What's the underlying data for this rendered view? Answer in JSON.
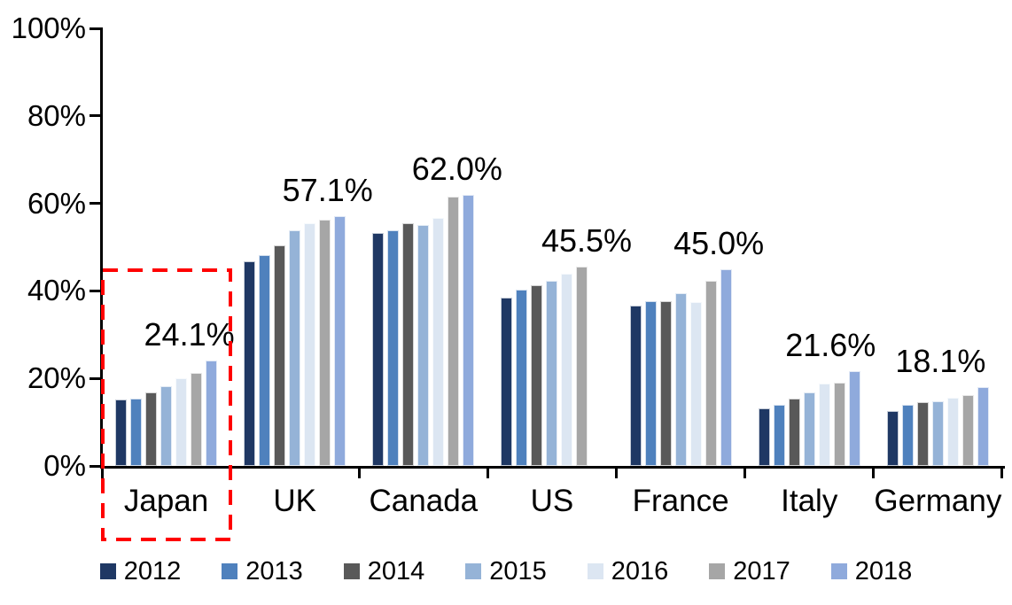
{
  "chart_data": {
    "type": "bar",
    "title": "",
    "categories": [
      "Japan",
      "UK",
      "Canada",
      "US",
      "France",
      "Italy",
      "Germany"
    ],
    "series": [
      {
        "name": "2012",
        "color": "#1F3864",
        "values": [
          15.1,
          46.7,
          53.3,
          38.5,
          36.6,
          13.2,
          12.6
        ]
      },
      {
        "name": "2013",
        "color": "#4F81BD",
        "values": [
          15.3,
          48.2,
          53.9,
          40.3,
          37.7,
          14.0,
          14.0
        ]
      },
      {
        "name": "2014",
        "color": "#595959",
        "values": [
          16.9,
          50.5,
          55.4,
          41.3,
          37.6,
          15.3,
          14.5
        ]
      },
      {
        "name": "2015",
        "color": "#95B3D7",
        "values": [
          18.2,
          53.8,
          55.0,
          42.3,
          39.5,
          16.8,
          14.8
        ]
      },
      {
        "name": "2016",
        "color": "#DCE6F2",
        "values": [
          20.0,
          55.5,
          56.6,
          44.0,
          37.4,
          18.8,
          15.5
        ]
      },
      {
        "name": "2017",
        "color": "#A6A6A6",
        "values": [
          21.3,
          56.3,
          61.6,
          45.5,
          42.4,
          19.1,
          16.1
        ]
      },
      {
        "name": "2018",
        "color": "#8FAADC",
        "values": [
          24.1,
          57.1,
          62.0,
          null,
          45.0,
          21.6,
          18.1
        ]
      }
    ],
    "data_labels": [
      {
        "category": "Japan",
        "series": "2018",
        "text": "24.1%",
        "dx": -25
      },
      {
        "category": "UK",
        "series": "2018",
        "text": "57.1%",
        "dx": -14
      },
      {
        "category": "Canada",
        "series": "2018",
        "text": "62.0%",
        "dx": -13
      },
      {
        "category": "US",
        "series": "2017",
        "text": "45.5%",
        "dx": 5
      },
      {
        "category": "France",
        "series": "2018",
        "text": "45.0%",
        "dx": -8
      },
      {
        "category": "Italy",
        "series": "2018",
        "text": "21.6%",
        "dx": -27
      },
      {
        "category": "Germany",
        "series": "2018",
        "text": "18.1%",
        "dx": -48
      }
    ],
    "y_axis": {
      "min": 0,
      "max": 100,
      "ticks": [
        "0%",
        "20%",
        "40%",
        "60%",
        "80%",
        "100%"
      ]
    },
    "legend": [
      "2012",
      "2013",
      "2014",
      "2015",
      "2016",
      "2017",
      "2018"
    ],
    "legend_position": "bottom",
    "grid": false,
    "highlight": {
      "category": "Japan",
      "shape": "dashed-rectangle",
      "color": "#FF0000"
    }
  }
}
